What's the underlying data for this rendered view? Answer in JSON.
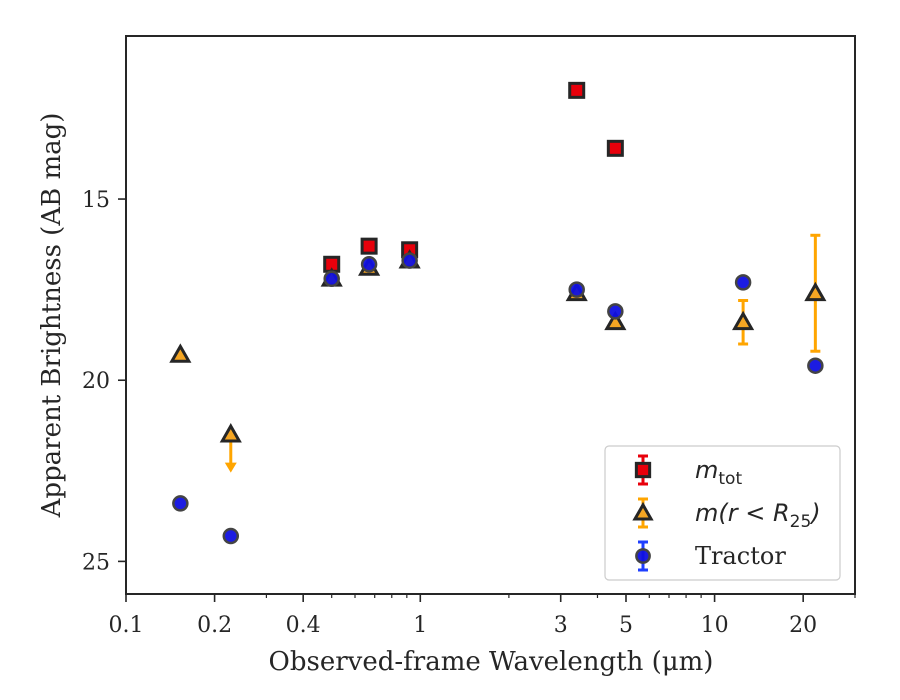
{
  "chart_data": {
    "type": "scatter",
    "xlabel": "Observed-frame Wavelength (μm)",
    "ylabel": "Apparent Brightness (AB mag)",
    "x_scale": "log",
    "y_inverted": true,
    "xlim": [
      0.1,
      30
    ],
    "ylim": [
      25.9,
      10.5
    ],
    "x_ticks": [
      {
        "value": 0.1,
        "label": "0.1"
      },
      {
        "value": 0.2,
        "label": "0.2"
      },
      {
        "value": 0.4,
        "label": "0.4"
      },
      {
        "value": 1,
        "label": "1"
      },
      {
        "value": 3,
        "label": "3"
      },
      {
        "value": 5,
        "label": "5"
      },
      {
        "value": 10,
        "label": "10"
      },
      {
        "value": 20,
        "label": "20"
      }
    ],
    "y_ticks": [
      {
        "value": 15,
        "label": "15"
      },
      {
        "value": 20,
        "label": "20"
      },
      {
        "value": 25,
        "label": "25"
      }
    ],
    "grid": false,
    "legend_position": "lower-right",
    "series": [
      {
        "name": "m_tot",
        "legend": {
          "main": "m",
          "sub": "tot"
        },
        "marker": "square",
        "color": "#e8000b",
        "error_color": "#e8000b",
        "points": [
          {
            "x": 0.5,
            "y": 16.8,
            "yerr": 0.0
          },
          {
            "x": 0.67,
            "y": 16.3,
            "yerr": 0.0
          },
          {
            "x": 0.92,
            "y": 16.4,
            "yerr": 0.0
          },
          {
            "x": 3.4,
            "y": 12.0,
            "yerr": 0.0
          },
          {
            "x": 4.6,
            "y": 13.6,
            "yerr": 0.0
          }
        ]
      },
      {
        "name": "m(r < R_25)",
        "legend": {
          "main": "m(r < R",
          "sub": "25",
          "tail": ")"
        },
        "marker": "triangle",
        "color": "#f5a623",
        "error_color": "#ffa500",
        "points": [
          {
            "x": 0.153,
            "y": 19.3,
            "yerr": 0.0
          },
          {
            "x": 0.227,
            "y": 21.5,
            "yerr": 0.0,
            "upper_limit": true
          },
          {
            "x": 0.5,
            "y": 17.2,
            "yerr": 0.0
          },
          {
            "x": 0.67,
            "y": 16.9,
            "yerr": 0.0
          },
          {
            "x": 0.92,
            "y": 16.7,
            "yerr": 0.0
          },
          {
            "x": 3.4,
            "y": 17.6,
            "yerr": 0.0
          },
          {
            "x": 4.6,
            "y": 18.4,
            "yerr": 0.0
          },
          {
            "x": 12.5,
            "y": 18.4,
            "yerr": 0.6
          },
          {
            "x": 22.0,
            "y": 17.6,
            "yerr": 1.6
          }
        ]
      },
      {
        "name": "Tractor",
        "legend": {
          "main": "Tractor"
        },
        "marker": "circle",
        "color": "#1010e0",
        "error_color": "#1f3fff",
        "points": [
          {
            "x": 0.153,
            "y": 23.4,
            "yerr": 0.0
          },
          {
            "x": 0.227,
            "y": 24.3,
            "yerr": 0.0
          },
          {
            "x": 0.5,
            "y": 17.2,
            "yerr": 0.0
          },
          {
            "x": 0.67,
            "y": 16.8,
            "yerr": 0.0
          },
          {
            "x": 0.92,
            "y": 16.7,
            "yerr": 0.0
          },
          {
            "x": 3.4,
            "y": 17.5,
            "yerr": 0.0
          },
          {
            "x": 4.6,
            "y": 18.1,
            "yerr": 0.0
          },
          {
            "x": 12.5,
            "y": 17.3,
            "yerr": 0.0
          },
          {
            "x": 22.0,
            "y": 19.6,
            "yerr": 0.0
          }
        ]
      }
    ]
  }
}
